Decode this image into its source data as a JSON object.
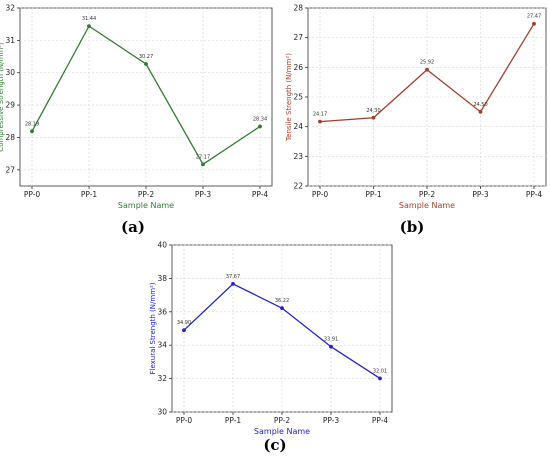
{
  "captions": [
    "(a)",
    "(b)",
    "(c)"
  ],
  "chart_data": [
    {
      "type": "line",
      "color": "#2e7d2e",
      "categories": [
        "PP-0",
        "PP-1",
        "PP-2",
        "PP-3",
        "PP-4"
      ],
      "values": [
        28.19,
        31.44,
        30.27,
        27.17,
        28.34
      ],
      "data_labels": [
        "28.19",
        "31.44",
        "30.27",
        "27.17",
        "28.34"
      ],
      "xlabel": "Sample Name",
      "ylabel": "Compressive Strength (N/mm²)",
      "ylim": [
        26.5,
        32
      ],
      "yticks": [
        "27",
        "28",
        "29",
        "30",
        "31",
        "32"
      ],
      "grid": true
    },
    {
      "type": "line",
      "color": "#a0402a",
      "categories": [
        "PP-0",
        "PP-1",
        "PP-2",
        "PP-3",
        "PP-4"
      ],
      "values": [
        24.17,
        24.3,
        25.92,
        24.5,
        27.47
      ],
      "data_labels": [
        "24.17",
        "24.30",
        "25.92",
        "24.50",
        "27.47"
      ],
      "xlabel": "Sample Name",
      "ylabel": "Tensile Strength (N/mm²)",
      "ylim": [
        22,
        28
      ],
      "yticks": [
        "22",
        "23",
        "24",
        "25",
        "26",
        "27",
        "28"
      ],
      "grid": true
    },
    {
      "type": "line",
      "color": "#2323c8",
      "categories": [
        "PP-0",
        "PP-1",
        "PP-2",
        "PP-3",
        "PP-4"
      ],
      "values": [
        34.9,
        37.67,
        36.22,
        33.91,
        32.01
      ],
      "data_labels": [
        "34.90",
        "37.67",
        "36.22",
        "33.91",
        "32.01"
      ],
      "xlabel": "Sample Name",
      "ylabel": "Flexural Strength (N/mm²)",
      "ylim": [
        30,
        40
      ],
      "yticks": [
        "30",
        "32",
        "34",
        "36",
        "38",
        "40"
      ],
      "grid": true
    }
  ]
}
